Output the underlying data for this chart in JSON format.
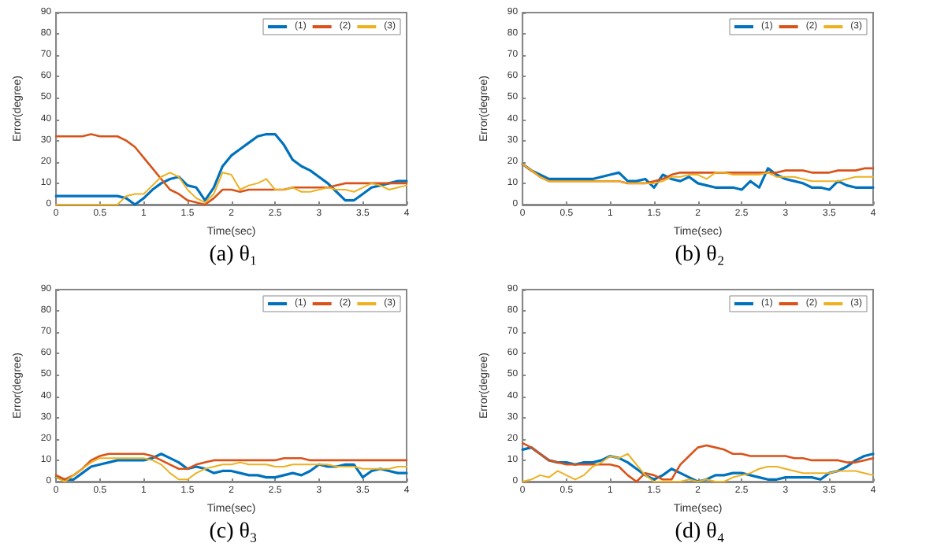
{
  "chart_data": [
    {
      "type": "line",
      "title": "(a) θ₁",
      "xlabel": "Time(sec)",
      "ylabel": "Error(degree)",
      "xlim": [
        0,
        4
      ],
      "xticks": [
        0,
        0.5,
        1,
        1.5,
        2,
        2.5,
        3,
        3.5,
        4
      ],
      "ylim": [
        0,
        90
      ],
      "yticks": [
        0,
        10,
        20,
        30,
        40,
        50,
        60,
        70,
        80,
        90
      ],
      "grid": false,
      "legend": "top right",
      "marker": "none",
      "line_style": "solid",
      "x": [
        0,
        0.1,
        0.2,
        0.3,
        0.4,
        0.5,
        0.6,
        0.7,
        0.8,
        0.9,
        1,
        1.1,
        1.2,
        1.3,
        1.4,
        1.5,
        1.6,
        1.7,
        1.8,
        1.9,
        2,
        2.1,
        2.2,
        2.3,
        2.4,
        2.5,
        2.6,
        2.7,
        2.8,
        2.9,
        3,
        3.1,
        3.2,
        3.3,
        3.4,
        3.5,
        3.6,
        3.7,
        3.8,
        3.9,
        4
      ],
      "series": [
        {
          "name": "(1)",
          "color": "#0072bd",
          "values": [
            4,
            4,
            4,
            4,
            4,
            4,
            4,
            4,
            3,
            0,
            3,
            7,
            10,
            12,
            13,
            9,
            8,
            2,
            8,
            18,
            23,
            26,
            29,
            32,
            33,
            33,
            28,
            21,
            18,
            16,
            13,
            10,
            6,
            2,
            2,
            5,
            8,
            9,
            10,
            11,
            11
          ]
        },
        {
          "name": "(2)",
          "color": "#d95319",
          "values": [
            32,
            32,
            32,
            32,
            33,
            32,
            32,
            32,
            30,
            27,
            22,
            17,
            12,
            7,
            5,
            2,
            1,
            0,
            3,
            7,
            7,
            6,
            7,
            7,
            7,
            7,
            7,
            8,
            8,
            8,
            8,
            8,
            9,
            10,
            10,
            10,
            10,
            10,
            10,
            10,
            10
          ]
        },
        {
          "name": "(3)",
          "color": "#edb120",
          "values": [
            0,
            0,
            0,
            0,
            0,
            0,
            0,
            0,
            4,
            5,
            5,
            9,
            13,
            15,
            13,
            7,
            3,
            1,
            5,
            15,
            14,
            7,
            9,
            10,
            12,
            7,
            7,
            8,
            6,
            6,
            7,
            8,
            7,
            7,
            6,
            8,
            10,
            9,
            7,
            8,
            9
          ]
        }
      ]
    },
    {
      "type": "line",
      "title": "(b) θ₂",
      "xlabel": "Time(sec)",
      "ylabel": "Error(degree)",
      "xlim": [
        0,
        4
      ],
      "xticks": [
        0,
        0.5,
        1,
        1.5,
        2,
        2.5,
        3,
        3.5,
        4
      ],
      "ylim": [
        0,
        90
      ],
      "yticks": [
        0,
        10,
        20,
        30,
        40,
        50,
        60,
        70,
        80,
        90
      ],
      "grid": false,
      "legend": "top right",
      "marker": "none",
      "line_style": "solid",
      "x": [
        0,
        0.1,
        0.2,
        0.3,
        0.4,
        0.5,
        0.6,
        0.7,
        0.8,
        0.9,
        1,
        1.1,
        1.2,
        1.3,
        1.4,
        1.5,
        1.6,
        1.7,
        1.8,
        1.9,
        2,
        2.1,
        2.2,
        2.3,
        2.4,
        2.5,
        2.6,
        2.7,
        2.8,
        2.9,
        3,
        3.1,
        3.2,
        3.3,
        3.4,
        3.5,
        3.6,
        3.7,
        3.8,
        3.9,
        4
      ],
      "series": [
        {
          "name": "(1)",
          "color": "#0072bd",
          "values": [
            19,
            16,
            14,
            12,
            12,
            12,
            12,
            12,
            12,
            13,
            14,
            15,
            11,
            11,
            12,
            8,
            14,
            12,
            11,
            13,
            10,
            9,
            8,
            8,
            8,
            7,
            11,
            8,
            17,
            14,
            12,
            11,
            10,
            8,
            8,
            7,
            11,
            9,
            8,
            8,
            8
          ]
        },
        {
          "name": "(2)",
          "color": "#d95319",
          "values": [
            19,
            16,
            13,
            11,
            11,
            11,
            11,
            11,
            11,
            11,
            11,
            11,
            10,
            10,
            10,
            11,
            12,
            14,
            15,
            15,
            15,
            15,
            15,
            15,
            15,
            15,
            15,
            15,
            15,
            15,
            16,
            16,
            16,
            15,
            15,
            15,
            16,
            16,
            16,
            17,
            17
          ]
        },
        {
          "name": "(3)",
          "color": "#edb120",
          "values": [
            19,
            16,
            13,
            11,
            11,
            11,
            11,
            11,
            11,
            11,
            11,
            11,
            10,
            10,
            10,
            10,
            11,
            13,
            13,
            14,
            14,
            12,
            15,
            15,
            14,
            14,
            14,
            14,
            15,
            13,
            13,
            13,
            12,
            11,
            11,
            11,
            11,
            12,
            13,
            13,
            13
          ]
        }
      ]
    },
    {
      "type": "line",
      "title": "(c) θ₃",
      "xlabel": "Time(sec)",
      "ylabel": "Error(degree)",
      "xlim": [
        0,
        4
      ],
      "xticks": [
        0,
        0.5,
        1,
        1.5,
        2,
        2.5,
        3,
        3.5,
        4
      ],
      "ylim": [
        0,
        90
      ],
      "yticks": [
        0,
        10,
        20,
        30,
        40,
        50,
        60,
        70,
        80,
        90
      ],
      "grid": false,
      "legend": "top right",
      "marker": "none",
      "line_style": "solid",
      "x": [
        0,
        0.1,
        0.2,
        0.3,
        0.4,
        0.5,
        0.6,
        0.7,
        0.8,
        0.9,
        1,
        1.1,
        1.2,
        1.3,
        1.4,
        1.5,
        1.6,
        1.7,
        1.8,
        1.9,
        2,
        2.1,
        2.2,
        2.3,
        2.4,
        2.5,
        2.6,
        2.7,
        2.8,
        2.9,
        3,
        3.1,
        3.2,
        3.3,
        3.4,
        3.5,
        3.6,
        3.7,
        3.8,
        3.9,
        4
      ],
      "series": [
        {
          "name": "(1)",
          "color": "#0072bd",
          "values": [
            2,
            1,
            1,
            4,
            7,
            8,
            9,
            10,
            10,
            10,
            10,
            11,
            13,
            11,
            9,
            6,
            7,
            6,
            4,
            5,
            5,
            4,
            3,
            3,
            2,
            2,
            3,
            4,
            3,
            5,
            8,
            7,
            7,
            8,
            8,
            2,
            5,
            6,
            5,
            4,
            4
          ]
        },
        {
          "name": "(2)",
          "color": "#d95319",
          "values": [
            3,
            1,
            3,
            6,
            10,
            12,
            13,
            13,
            13,
            13,
            13,
            12,
            10,
            8,
            6,
            6,
            8,
            9,
            10,
            10,
            10,
            10,
            10,
            10,
            10,
            10,
            11,
            11,
            11,
            10,
            10,
            10,
            10,
            10,
            10,
            10,
            10,
            10,
            10,
            10,
            10
          ]
        },
        {
          "name": "(3)",
          "color": "#edb120",
          "values": [
            2,
            0,
            3,
            6,
            9,
            11,
            11,
            11,
            11,
            11,
            11,
            10,
            8,
            4,
            1,
            1,
            4,
            6,
            7,
            8,
            8,
            9,
            8,
            8,
            8,
            7,
            7,
            8,
            8,
            8,
            8,
            8,
            7,
            7,
            7,
            6,
            6,
            6,
            6,
            7,
            7
          ]
        }
      ]
    },
    {
      "type": "line",
      "title": "(d) θ₄",
      "xlabel": "Time(sec)",
      "ylabel": "Error(degree)",
      "xlim": [
        0,
        4
      ],
      "xticks": [
        0,
        0.5,
        1,
        1.5,
        2,
        2.5,
        3,
        3.5,
        4
      ],
      "ylim": [
        0,
        90
      ],
      "yticks": [
        0,
        10,
        20,
        30,
        40,
        50,
        60,
        70,
        80,
        90
      ],
      "grid": false,
      "legend": "top right",
      "marker": "none",
      "line_style": "solid",
      "x": [
        0,
        0.1,
        0.2,
        0.3,
        0.4,
        0.5,
        0.6,
        0.7,
        0.8,
        0.9,
        1,
        1.1,
        1.2,
        1.3,
        1.4,
        1.5,
        1.6,
        1.7,
        1.8,
        1.9,
        2,
        2.1,
        2.2,
        2.3,
        2.4,
        2.5,
        2.6,
        2.7,
        2.8,
        2.9,
        3,
        3.1,
        3.2,
        3.3,
        3.4,
        3.5,
        3.6,
        3.7,
        3.8,
        3.9,
        4
      ],
      "series": [
        {
          "name": "(1)",
          "color": "#0072bd",
          "values": [
            15,
            16,
            13,
            10,
            9,
            9,
            8,
            9,
            9,
            10,
            12,
            11,
            9,
            6,
            3,
            1,
            3,
            6,
            4,
            2,
            0,
            1,
            3,
            3,
            4,
            4,
            3,
            2,
            1,
            1,
            2,
            2,
            2,
            2,
            1,
            4,
            5,
            7,
            10,
            12,
            13
          ]
        },
        {
          "name": "(2)",
          "color": "#d95319",
          "values": [
            18,
            16,
            13,
            10,
            9,
            8,
            8,
            8,
            8,
            8,
            8,
            7,
            3,
            0,
            4,
            3,
            1,
            1,
            8,
            12,
            16,
            17,
            16,
            15,
            13,
            13,
            12,
            12,
            12,
            12,
            12,
            11,
            11,
            10,
            10,
            10,
            10,
            9,
            9,
            10,
            11
          ]
        },
        {
          "name": "(3)",
          "color": "#edb120",
          "values": [
            0,
            1,
            3,
            2,
            5,
            3,
            1,
            3,
            7,
            9,
            12,
            11,
            13,
            8,
            3,
            0,
            0,
            0,
            0,
            1,
            0,
            1,
            0,
            0,
            2,
            3,
            4,
            6,
            7,
            7,
            6,
            5,
            4,
            4,
            4,
            4,
            5,
            5,
            5,
            4,
            3
          ]
        }
      ]
    }
  ]
}
